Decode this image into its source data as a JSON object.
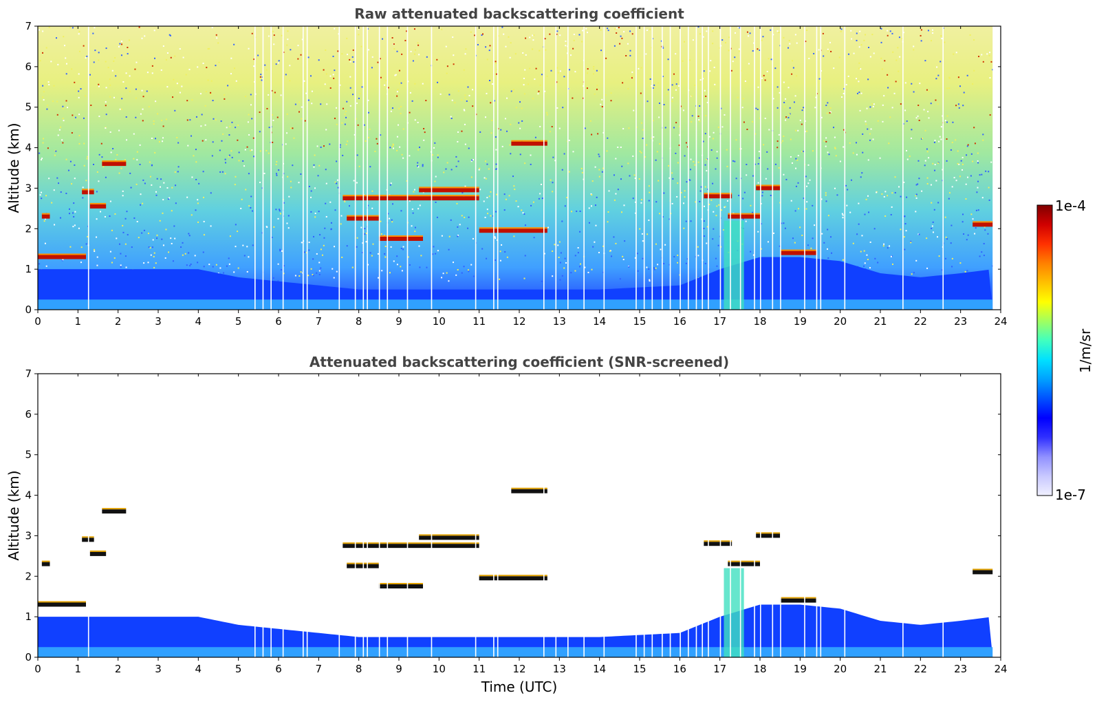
{
  "chart_data": [
    {
      "type": "heatmap",
      "title": "Raw attenuated backscattering coefficient",
      "xlabel": "",
      "ylabel": "Altitude (km)",
      "xlim": [
        0,
        24
      ],
      "ylim": [
        0,
        7
      ],
      "x_ticks": [
        "0",
        "1",
        "2",
        "3",
        "4",
        "5",
        "6",
        "7",
        "8",
        "9",
        "10",
        "11",
        "12",
        "13",
        "14",
        "15",
        "16",
        "17",
        "18",
        "19",
        "20",
        "21",
        "22",
        "23",
        "24"
      ],
      "y_ticks": [
        "0",
        "1",
        "2",
        "3",
        "4",
        "5",
        "6",
        "7"
      ],
      "screened": false,
      "boundary_layer_top_km": {
        "x": [
          0,
          2,
          4,
          5,
          6,
          7,
          8,
          10,
          12,
          14,
          15,
          16,
          17,
          18,
          19,
          20,
          21,
          22,
          23,
          23.8
        ],
        "y": [
          1.0,
          1.0,
          1.0,
          0.8,
          0.7,
          0.6,
          0.5,
          0.5,
          0.5,
          0.5,
          0.55,
          0.6,
          1.0,
          1.3,
          1.3,
          1.2,
          0.9,
          0.8,
          0.9,
          1.0
        ]
      },
      "features": [
        {
          "kind": "aerosol_layer",
          "x_start": 0.0,
          "x_end": 1.2,
          "y_km": 1.3
        },
        {
          "kind": "cloud",
          "x_start": 1.6,
          "x_end": 2.2,
          "y_km": 3.6
        },
        {
          "kind": "cloud",
          "x_start": 1.1,
          "x_end": 1.4,
          "y_km": 2.9
        },
        {
          "kind": "cloud",
          "x_start": 1.3,
          "x_end": 1.7,
          "y_km": 2.55
        },
        {
          "kind": "cloud",
          "x_start": 0.1,
          "x_end": 0.3,
          "y_km": 2.3
        },
        {
          "kind": "cloud",
          "x_start": 7.6,
          "x_end": 11.0,
          "y_km": 2.75
        },
        {
          "kind": "cloud",
          "x_start": 9.5,
          "x_end": 11.0,
          "y_km": 2.95
        },
        {
          "kind": "cloud",
          "x_start": 7.7,
          "x_end": 8.5,
          "y_km": 2.25
        },
        {
          "kind": "cloud",
          "x_start": 8.5,
          "x_end": 9.6,
          "y_km": 1.75
        },
        {
          "kind": "cloud",
          "x_start": 11.0,
          "x_end": 12.7,
          "y_km": 1.95
        },
        {
          "kind": "cloud",
          "x_start": 11.8,
          "x_end": 12.7,
          "y_km": 4.1
        },
        {
          "kind": "cloud",
          "x_start": 16.6,
          "x_end": 17.3,
          "y_km": 2.8
        },
        {
          "kind": "cloud",
          "x_start": 17.2,
          "x_end": 18.0,
          "y_km": 2.3
        },
        {
          "kind": "cloud",
          "x_start": 17.9,
          "x_end": 18.5,
          "y_km": 3.0
        },
        {
          "kind": "cloud",
          "x_start": 18.5,
          "x_end": 19.4,
          "y_km": 1.4
        },
        {
          "kind": "cloud",
          "x_start": 23.3,
          "x_end": 23.8,
          "y_km": 2.1
        }
      ]
    },
    {
      "type": "heatmap",
      "title": "Attenuated backscattering coefficient (SNR-screened)",
      "xlabel": "Time (UTC)",
      "ylabel": "Altitude (km)",
      "xlim": [
        0,
        24
      ],
      "ylim": [
        0,
        7
      ],
      "x_ticks": [
        "0",
        "1",
        "2",
        "3",
        "4",
        "5",
        "6",
        "7",
        "8",
        "9",
        "10",
        "11",
        "12",
        "13",
        "14",
        "15",
        "16",
        "17",
        "18",
        "19",
        "20",
        "21",
        "22",
        "23",
        "24"
      ],
      "y_ticks": [
        "0",
        "1",
        "2",
        "3",
        "4",
        "5",
        "6",
        "7"
      ],
      "screened": true
    }
  ],
  "colorbar": {
    "label": "1/m/sr",
    "max_label": "1e-4",
    "min_label": "1e-7",
    "scale": "log",
    "colormap": [
      "#f0f0ff",
      "#c8c8ff",
      "#9090ff",
      "#3030ff",
      "#0000ff",
      "#0050ff",
      "#00a0ff",
      "#00e0ff",
      "#40ffc0",
      "#a0ff60",
      "#ffff00",
      "#ffc000",
      "#ff8000",
      "#ff3000",
      "#d00000",
      "#800000"
    ]
  }
}
